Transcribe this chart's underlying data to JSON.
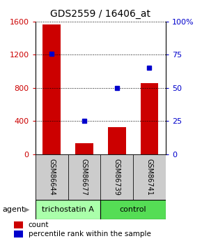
{
  "title": "GDS2559 / 16406_at",
  "samples": [
    "GSM86644",
    "GSM86677",
    "GSM86739",
    "GSM86741"
  ],
  "counts": [
    1570,
    130,
    330,
    860
  ],
  "percentiles": [
    76,
    25,
    50,
    65
  ],
  "ylim_left": [
    0,
    1600
  ],
  "ylim_right": [
    0,
    100
  ],
  "yticks_left": [
    0,
    400,
    800,
    1200,
    1600
  ],
  "yticks_right": [
    0,
    25,
    50,
    75,
    100
  ],
  "bar_color": "#cc0000",
  "dot_color": "#0000cc",
  "agent_light_green": "#aaffaa",
  "agent_dark_green": "#55dd55",
  "sample_box_color": "#cccccc",
  "title_fontsize": 10,
  "tick_fontsize": 8,
  "label_fontsize": 7,
  "legend_fontsize": 7.5,
  "agent_fontsize": 8
}
